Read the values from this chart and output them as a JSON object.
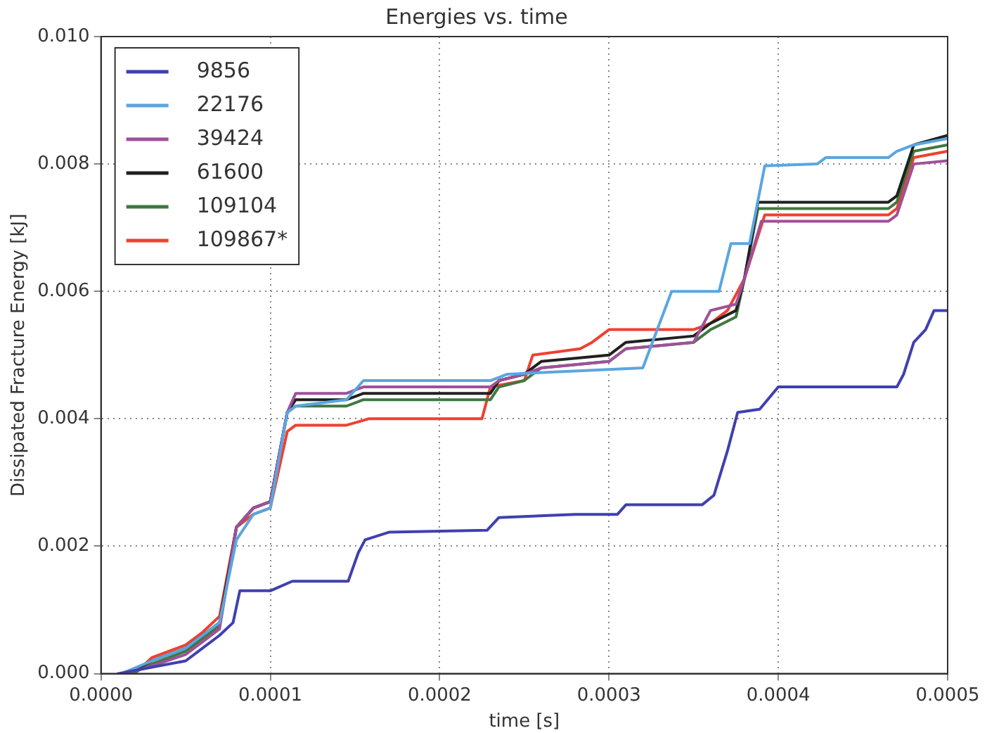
{
  "chart_data": {
    "type": "line",
    "title": "Energies vs. time",
    "xlabel": "time [s]",
    "ylabel": "Dissipated Fracture Energy [kJ]",
    "xlim": [
      0,
      0.0005
    ],
    "ylim": [
      0,
      0.01
    ],
    "xticks": [
      {
        "value": 0,
        "label": "0.0000"
      },
      0.0001,
      0.0002,
      0.0003,
      0.0004,
      0.0005
    ],
    "yticks": [
      {
        "value": 0,
        "label": "0.000"
      },
      0.002,
      0.004,
      0.006,
      0.008,
      {
        "value": 0.01,
        "label": "0.010"
      }
    ],
    "grid": true,
    "legend": "top left",
    "marker": "none",
    "line_style": "solid",
    "series": [
      {
        "name": "9856",
        "color": "#4040b0",
        "x": [
          1e-05,
          3e-05,
          5e-05,
          6e-05,
          7e-05,
          7.8e-05,
          8.2e-05,
          0.0001,
          0.000113,
          0.000146,
          0.000152,
          0.000156,
          0.00017,
          0.000228,
          0.000235,
          0.00028,
          0.000305,
          0.00031,
          0.000355,
          0.000362,
          0.00037,
          0.000376,
          0.000389,
          0.0004,
          0.00047,
          0.000474,
          0.00048,
          0.000487,
          0.000492,
          0.0005
        ],
        "values": [
          0,
          0.0001,
          0.0002,
          0.0004,
          0.0006,
          0.0008,
          0.0013,
          0.0013,
          0.00145,
          0.00145,
          0.0019,
          0.0021,
          0.00222,
          0.00225,
          0.00245,
          0.0025,
          0.0025,
          0.00265,
          0.00265,
          0.0028,
          0.0035,
          0.0041,
          0.00415,
          0.0045,
          0.0045,
          0.0047,
          0.0052,
          0.0054,
          0.0057,
          0.0057
        ]
      },
      {
        "name": "22176",
        "color": "#5aa6e0",
        "x": [
          1.2e-05,
          3e-05,
          5e-05,
          6e-05,
          7e-05,
          8e-05,
          9e-05,
          0.0001,
          0.00011,
          0.000115,
          0.000145,
          0.000155,
          0.00023,
          0.00024,
          0.00032,
          0.000337,
          0.000365,
          0.000372,
          0.000383,
          0.000392,
          0.000423,
          0.000428,
          0.000465,
          0.00047,
          0.00048,
          0.0005
        ],
        "values": [
          0,
          0.0002,
          0.0004,
          0.0006,
          0.0008,
          0.0021,
          0.0025,
          0.0026,
          0.0041,
          0.0042,
          0.0043,
          0.0046,
          0.0046,
          0.0047,
          0.0048,
          0.006,
          0.006,
          0.00675,
          0.00675,
          0.00797,
          0.008,
          0.0081,
          0.0081,
          0.0082,
          0.0083,
          0.0084
        ]
      },
      {
        "name": "39424",
        "color": "#a0509a",
        "x": [
          1.4e-05,
          3e-05,
          5e-05,
          6e-05,
          7e-05,
          8e-05,
          9e-05,
          0.0001,
          0.00011,
          0.000115,
          0.000145,
          0.000155,
          0.00023,
          0.000235,
          0.00025,
          0.00026,
          0.0003,
          0.00031,
          0.00035,
          0.00036,
          0.000375,
          0.00038,
          0.00039,
          0.000465,
          0.00047,
          0.00048,
          0.0005
        ],
        "values": [
          0,
          0.00012,
          0.0003,
          0.0005,
          0.0007,
          0.0023,
          0.0026,
          0.0027,
          0.0041,
          0.0044,
          0.0044,
          0.0045,
          0.0045,
          0.0046,
          0.0047,
          0.0048,
          0.0049,
          0.0051,
          0.0052,
          0.0057,
          0.0058,
          0.0062,
          0.0071,
          0.0071,
          0.0072,
          0.008,
          0.00805
        ]
      },
      {
        "name": "61600",
        "color": "#202020",
        "x": [
          1.6e-05,
          3e-05,
          5e-05,
          6e-05,
          7e-05,
          8e-05,
          9e-05,
          0.0001,
          0.00011,
          0.000115,
          0.000145,
          0.000155,
          0.00023,
          0.000235,
          0.00025,
          0.00026,
          0.0003,
          0.00031,
          0.00035,
          0.00036,
          0.000375,
          0.00038,
          0.000388,
          0.000465,
          0.00047,
          0.00048,
          0.0005
        ],
        "values": [
          0,
          0.0002,
          0.0004,
          0.0006,
          0.0008,
          0.0023,
          0.0026,
          0.0027,
          0.0041,
          0.0043,
          0.0043,
          0.0044,
          0.0044,
          0.0046,
          0.0047,
          0.0049,
          0.005,
          0.0052,
          0.0053,
          0.0055,
          0.0057,
          0.0062,
          0.0074,
          0.0074,
          0.0075,
          0.0083,
          0.00845
        ]
      },
      {
        "name": "109104",
        "color": "#407840",
        "x": [
          1.8e-05,
          3e-05,
          5e-05,
          6e-05,
          7e-05,
          8e-05,
          9e-05,
          0.0001,
          0.00011,
          0.000115,
          0.000145,
          0.000155,
          0.00023,
          0.000235,
          0.00025,
          0.00026,
          0.0003,
          0.00031,
          0.00035,
          0.00036,
          0.000375,
          0.00038,
          0.000388,
          0.000465,
          0.00047,
          0.00048,
          0.0005
        ],
        "values": [
          0,
          0.00015,
          0.00035,
          0.00055,
          0.00075,
          0.0023,
          0.0026,
          0.0027,
          0.0041,
          0.0042,
          0.0042,
          0.0043,
          0.0043,
          0.0045,
          0.0046,
          0.0048,
          0.0049,
          0.0051,
          0.0052,
          0.0054,
          0.0056,
          0.0062,
          0.0073,
          0.0073,
          0.0074,
          0.0082,
          0.0083
        ]
      },
      {
        "name": "109867*",
        "color": "#f04030",
        "x": [
          2e-05,
          3e-05,
          5e-05,
          6e-05,
          7e-05,
          8e-05,
          9e-05,
          0.0001,
          0.00011,
          0.000115,
          0.000145,
          0.000158,
          0.000225,
          0.00023,
          0.00025,
          0.000255,
          0.000283,
          0.00029,
          0.0003,
          0.00035,
          0.00036,
          0.00037,
          0.00038,
          0.000392,
          0.000465,
          0.00047,
          0.00048,
          0.0005
        ],
        "values": [
          0,
          0.00025,
          0.00045,
          0.00065,
          0.0009,
          0.0023,
          0.0025,
          0.0026,
          0.0038,
          0.0039,
          0.0039,
          0.004,
          0.004,
          0.0045,
          0.0046,
          0.005,
          0.0051,
          0.0052,
          0.0054,
          0.0054,
          0.0055,
          0.0057,
          0.0062,
          0.0072,
          0.0072,
          0.0073,
          0.0081,
          0.0082
        ]
      }
    ]
  }
}
